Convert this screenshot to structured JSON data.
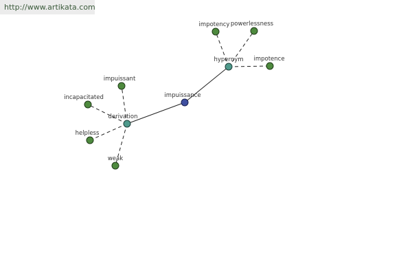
{
  "watermark": "http://www.artikata.com",
  "graph": {
    "center": {
      "label": "impuissance"
    },
    "hubs": {
      "hypernym": {
        "label": "hypernym"
      },
      "derivation": {
        "label": "derivation"
      }
    },
    "words": {
      "impotency": "impotency",
      "powerlessness": "powerlessness",
      "impotence": "impotence",
      "impuissant": "impuissant",
      "incapacitated": "incapacitated",
      "helpless": "helpless",
      "weak": "weak"
    }
  },
  "colors": {
    "center_node": "#3f4fa0",
    "relation_node": "#4f9a8c",
    "word_node": "#4e8a3e"
  }
}
